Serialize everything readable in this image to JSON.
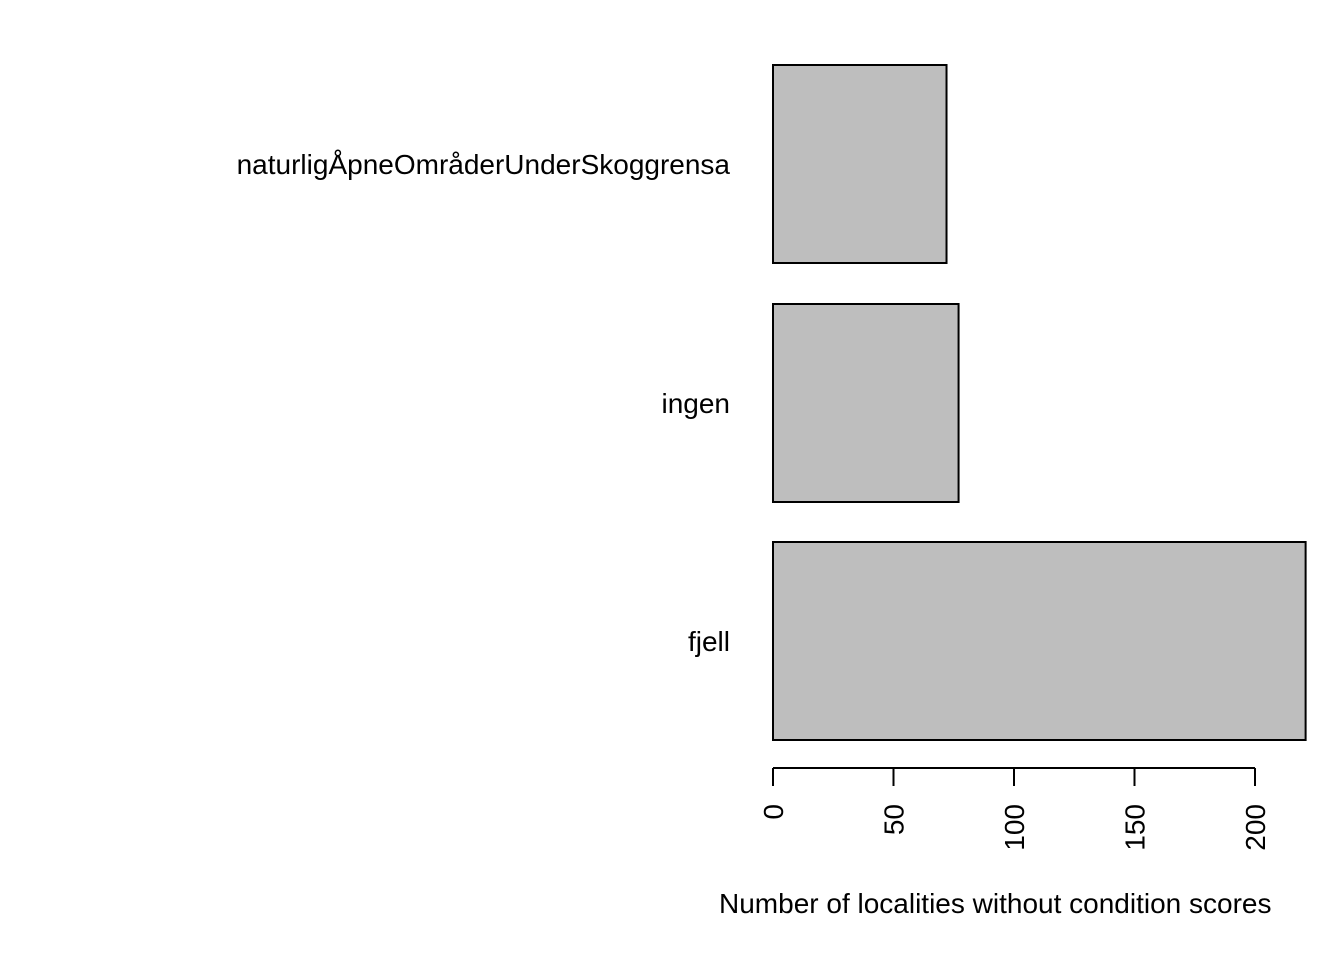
{
  "chart_data": {
    "type": "bar",
    "orientation": "horizontal",
    "categories": [
      "naturligÅpneOmråderUnderSkoggrensa",
      "ingen",
      "fjell"
    ],
    "values": [
      72,
      77,
      221
    ],
    "xlabel": "Number of localities without condition scores",
    "ylabel": "",
    "xlim": [
      0,
      221
    ],
    "ticks": [
      {
        "value": 0,
        "label": "0"
      },
      {
        "value": 50,
        "label": "50"
      },
      {
        "value": 100,
        "label": "100"
      },
      {
        "value": 150,
        "label": "150"
      },
      {
        "value": 200,
        "label": "200"
      }
    ],
    "bar_color": "#bebebe",
    "grid": false,
    "legend": "none"
  }
}
